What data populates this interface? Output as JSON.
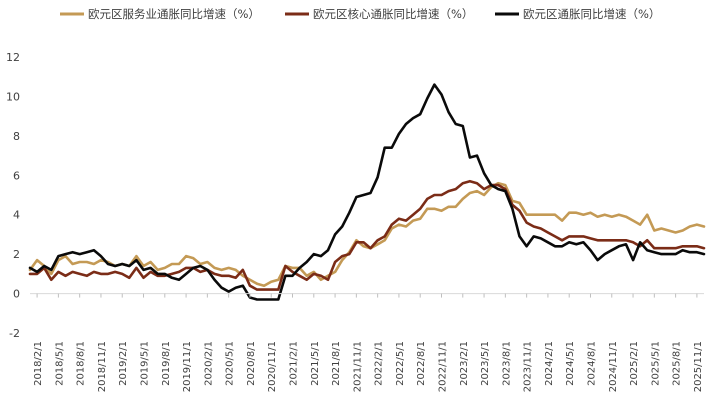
{
  "chart_data": {
    "type": "line",
    "title": "",
    "xlabel": "",
    "ylabel": "",
    "ylim": [
      -2,
      12
    ],
    "yticks": [
      -2,
      0,
      2,
      4,
      6,
      8,
      10,
      12
    ],
    "grid": false,
    "legend_position": "top",
    "x_start": "2018-01",
    "x_end": "2025-12",
    "x_ticks": [
      "2018/2/1",
      "2018/5/1",
      "2018/8/1",
      "2018/11/1",
      "2019/2/1",
      "2019/5/1",
      "2019/8/1",
      "2019/11/1",
      "2020/2/1",
      "2020/5/1",
      "2020/8/1",
      "2020/11/1",
      "2021/2/1",
      "2021/5/1",
      "2021/8/1",
      "2021/11/1",
      "2022/2/1",
      "2022/5/1",
      "2022/8/1",
      "2022/11/1",
      "2023/2/1",
      "2023/5/1",
      "2023/8/1",
      "2023/11/1",
      "2024/2/1",
      "2024/5/1",
      "2024/8/1",
      "2024/11/1",
      "2025/2/1",
      "2025/5/1",
      "2025/8/1",
      "2025/11/1"
    ],
    "series": [
      {
        "name": "欧元区服务业通胀同比增速（%）",
        "color": "#C49A55",
        "points": [
          [
            "2018-01",
            1.2
          ],
          [
            "2018-02",
            1.7
          ],
          [
            "2018-03",
            1.4
          ],
          [
            "2018-04",
            1.0
          ],
          [
            "2018-05",
            1.7
          ],
          [
            "2018-06",
            1.9
          ],
          [
            "2018-07",
            1.5
          ],
          [
            "2018-08",
            1.6
          ],
          [
            "2018-09",
            1.6
          ],
          [
            "2018-10",
            1.5
          ],
          [
            "2018-11",
            1.7
          ],
          [
            "2018-12",
            1.6
          ],
          [
            "2019-01",
            1.4
          ],
          [
            "2019-02",
            1.5
          ],
          [
            "2019-03",
            1.4
          ],
          [
            "2019-04",
            1.9
          ],
          [
            "2019-05",
            1.4
          ],
          [
            "2019-06",
            1.6
          ],
          [
            "2019-07",
            1.2
          ],
          [
            "2019-08",
            1.3
          ],
          [
            "2019-09",
            1.5
          ],
          [
            "2019-10",
            1.5
          ],
          [
            "2019-11",
            1.9
          ],
          [
            "2019-12",
            1.8
          ],
          [
            "2020-01",
            1.5
          ],
          [
            "2020-02",
            1.6
          ],
          [
            "2020-03",
            1.3
          ],
          [
            "2020-04",
            1.2
          ],
          [
            "2020-05",
            1.3
          ],
          [
            "2020-06",
            1.2
          ],
          [
            "2020-07",
            0.9
          ],
          [
            "2020-08",
            0.7
          ],
          [
            "2020-09",
            0.5
          ],
          [
            "2020-10",
            0.4
          ],
          [
            "2020-11",
            0.6
          ],
          [
            "2020-12",
            0.7
          ],
          [
            "2021-01",
            1.4
          ],
          [
            "2021-02",
            1.3
          ],
          [
            "2021-03",
            1.3
          ],
          [
            "2021-04",
            0.9
          ],
          [
            "2021-05",
            1.1
          ],
          [
            "2021-06",
            0.7
          ],
          [
            "2021-07",
            0.9
          ],
          [
            "2021-08",
            1.1
          ],
          [
            "2021-09",
            1.7
          ],
          [
            "2021-10",
            2.1
          ],
          [
            "2021-11",
            2.7
          ],
          [
            "2021-12",
            2.4
          ],
          [
            "2022-01",
            2.3
          ],
          [
            "2022-02",
            2.5
          ],
          [
            "2022-03",
            2.7
          ],
          [
            "2022-04",
            3.3
          ],
          [
            "2022-05",
            3.5
          ],
          [
            "2022-06",
            3.4
          ],
          [
            "2022-07",
            3.7
          ],
          [
            "2022-08",
            3.8
          ],
          [
            "2022-09",
            4.3
          ],
          [
            "2022-10",
            4.3
          ],
          [
            "2022-11",
            4.2
          ],
          [
            "2022-12",
            4.4
          ],
          [
            "2023-01",
            4.4
          ],
          [
            "2023-02",
            4.8
          ],
          [
            "2023-03",
            5.1
          ],
          [
            "2023-04",
            5.2
          ],
          [
            "2023-05",
            5.0
          ],
          [
            "2023-06",
            5.4
          ],
          [
            "2023-07",
            5.6
          ],
          [
            "2023-08",
            5.5
          ],
          [
            "2023-09",
            4.7
          ],
          [
            "2023-10",
            4.6
          ],
          [
            "2023-11",
            4.0
          ],
          [
            "2023-12",
            4.0
          ],
          [
            "2024-01",
            4.0
          ],
          [
            "2024-02",
            4.0
          ],
          [
            "2024-03",
            4.0
          ],
          [
            "2024-04",
            3.7
          ],
          [
            "2024-05",
            4.1
          ],
          [
            "2024-06",
            4.1
          ],
          [
            "2024-07",
            4.0
          ],
          [
            "2024-08",
            4.1
          ],
          [
            "2024-09",
            3.9
          ],
          [
            "2024-10",
            4.0
          ],
          [
            "2024-11",
            3.9
          ],
          [
            "2024-12",
            4.0
          ],
          [
            "2025-01",
            3.9
          ],
          [
            "2025-02",
            3.7
          ],
          [
            "2025-03",
            3.5
          ],
          [
            "2025-04",
            4.0
          ],
          [
            "2025-05",
            3.2
          ],
          [
            "2025-06",
            3.3
          ],
          [
            "2025-07",
            3.2
          ],
          [
            "2025-08",
            3.1
          ],
          [
            "2025-09",
            3.2
          ],
          [
            "2025-10",
            3.4
          ],
          [
            "2025-11",
            3.5
          ],
          [
            "2025-12",
            3.4
          ]
        ]
      },
      {
        "name": "欧元区核心通胀同比增速（%）",
        "color": "#7B2C17",
        "points": [
          [
            "2018-01",
            1.0
          ],
          [
            "2018-02",
            1.0
          ],
          [
            "2018-03",
            1.3
          ],
          [
            "2018-04",
            0.7
          ],
          [
            "2018-05",
            1.1
          ],
          [
            "2018-06",
            0.9
          ],
          [
            "2018-07",
            1.1
          ],
          [
            "2018-08",
            1.0
          ],
          [
            "2018-09",
            0.9
          ],
          [
            "2018-10",
            1.1
          ],
          [
            "2018-11",
            1.0
          ],
          [
            "2018-12",
            1.0
          ],
          [
            "2019-01",
            1.1
          ],
          [
            "2019-02",
            1.0
          ],
          [
            "2019-03",
            0.8
          ],
          [
            "2019-04",
            1.3
          ],
          [
            "2019-05",
            0.8
          ],
          [
            "2019-06",
            1.1
          ],
          [
            "2019-07",
            0.9
          ],
          [
            "2019-08",
            0.9
          ],
          [
            "2019-09",
            1.0
          ],
          [
            "2019-10",
            1.1
          ],
          [
            "2019-11",
            1.3
          ],
          [
            "2019-12",
            1.3
          ],
          [
            "2020-01",
            1.1
          ],
          [
            "2020-02",
            1.2
          ],
          [
            "2020-03",
            1.0
          ],
          [
            "2020-04",
            0.9
          ],
          [
            "2020-05",
            0.9
          ],
          [
            "2020-06",
            0.8
          ],
          [
            "2020-07",
            1.2
          ],
          [
            "2020-08",
            0.4
          ],
          [
            "2020-09",
            0.2
          ],
          [
            "2020-10",
            0.2
          ],
          [
            "2020-11",
            0.2
          ],
          [
            "2020-12",
            0.2
          ],
          [
            "2021-01",
            1.4
          ],
          [
            "2021-02",
            1.1
          ],
          [
            "2021-03",
            0.9
          ],
          [
            "2021-04",
            0.7
          ],
          [
            "2021-05",
            1.0
          ],
          [
            "2021-06",
            0.9
          ],
          [
            "2021-07",
            0.7
          ],
          [
            "2021-08",
            1.6
          ],
          [
            "2021-09",
            1.9
          ],
          [
            "2021-10",
            2.0
          ],
          [
            "2021-11",
            2.6
          ],
          [
            "2021-12",
            2.6
          ],
          [
            "2022-01",
            2.3
          ],
          [
            "2022-02",
            2.7
          ],
          [
            "2022-03",
            2.9
          ],
          [
            "2022-04",
            3.5
          ],
          [
            "2022-05",
            3.8
          ],
          [
            "2022-06",
            3.7
          ],
          [
            "2022-07",
            4.0
          ],
          [
            "2022-08",
            4.3
          ],
          [
            "2022-09",
            4.8
          ],
          [
            "2022-10",
            5.0
          ],
          [
            "2022-11",
            5.0
          ],
          [
            "2022-12",
            5.2
          ],
          [
            "2023-01",
            5.3
          ],
          [
            "2023-02",
            5.6
          ],
          [
            "2023-03",
            5.7
          ],
          [
            "2023-04",
            5.6
          ],
          [
            "2023-05",
            5.3
          ],
          [
            "2023-06",
            5.5
          ],
          [
            "2023-07",
            5.5
          ],
          [
            "2023-08",
            5.3
          ],
          [
            "2023-09",
            4.5
          ],
          [
            "2023-10",
            4.2
          ],
          [
            "2023-11",
            3.6
          ],
          [
            "2023-12",
            3.4
          ],
          [
            "2024-01",
            3.3
          ],
          [
            "2024-02",
            3.1
          ],
          [
            "2024-03",
            2.9
          ],
          [
            "2024-04",
            2.7
          ],
          [
            "2024-05",
            2.9
          ],
          [
            "2024-06",
            2.9
          ],
          [
            "2024-07",
            2.9
          ],
          [
            "2024-08",
            2.8
          ],
          [
            "2024-09",
            2.7
          ],
          [
            "2024-10",
            2.7
          ],
          [
            "2024-11",
            2.7
          ],
          [
            "2024-12",
            2.7
          ],
          [
            "2025-01",
            2.7
          ],
          [
            "2025-02",
            2.6
          ],
          [
            "2025-03",
            2.4
          ],
          [
            "2025-04",
            2.7
          ],
          [
            "2025-05",
            2.3
          ],
          [
            "2025-06",
            2.3
          ],
          [
            "2025-07",
            2.3
          ],
          [
            "2025-08",
            2.3
          ],
          [
            "2025-09",
            2.4
          ],
          [
            "2025-10",
            2.4
          ],
          [
            "2025-11",
            2.4
          ],
          [
            "2025-12",
            2.3
          ]
        ]
      },
      {
        "name": "欧元区通胀同比增速（%）",
        "color": "#0a0a0a",
        "points": [
          [
            "2018-01",
            1.3
          ],
          [
            "2018-02",
            1.1
          ],
          [
            "2018-03",
            1.4
          ],
          [
            "2018-04",
            1.2
          ],
          [
            "2018-05",
            1.9
          ],
          [
            "2018-06",
            2.0
          ],
          [
            "2018-07",
            2.1
          ],
          [
            "2018-08",
            2.0
          ],
          [
            "2018-09",
            2.1
          ],
          [
            "2018-10",
            2.2
          ],
          [
            "2018-11",
            1.9
          ],
          [
            "2018-12",
            1.5
          ],
          [
            "2019-01",
            1.4
          ],
          [
            "2019-02",
            1.5
          ],
          [
            "2019-03",
            1.4
          ],
          [
            "2019-04",
            1.7
          ],
          [
            "2019-05",
            1.2
          ],
          [
            "2019-06",
            1.3
          ],
          [
            "2019-07",
            1.0
          ],
          [
            "2019-08",
            1.0
          ],
          [
            "2019-09",
            0.8
          ],
          [
            "2019-10",
            0.7
          ],
          [
            "2019-11",
            1.0
          ],
          [
            "2019-12",
            1.3
          ],
          [
            "2020-01",
            1.4
          ],
          [
            "2020-02",
            1.2
          ],
          [
            "2020-03",
            0.7
          ],
          [
            "2020-04",
            0.3
          ],
          [
            "2020-05",
            0.1
          ],
          [
            "2020-06",
            0.3
          ],
          [
            "2020-07",
            0.4
          ],
          [
            "2020-08",
            -0.2
          ],
          [
            "2020-09",
            -0.3
          ],
          [
            "2020-10",
            -0.3
          ],
          [
            "2020-11",
            -0.3
          ],
          [
            "2020-12",
            -0.3
          ],
          [
            "2021-01",
            0.9
          ],
          [
            "2021-02",
            0.9
          ],
          [
            "2021-03",
            1.3
          ],
          [
            "2021-04",
            1.6
          ],
          [
            "2021-05",
            2.0
          ],
          [
            "2021-06",
            1.9
          ],
          [
            "2021-07",
            2.2
          ],
          [
            "2021-08",
            3.0
          ],
          [
            "2021-09",
            3.4
          ],
          [
            "2021-10",
            4.1
          ],
          [
            "2021-11",
            4.9
          ],
          [
            "2021-12",
            5.0
          ],
          [
            "2022-01",
            5.1
          ],
          [
            "2022-02",
            5.9
          ],
          [
            "2022-03",
            7.4
          ],
          [
            "2022-04",
            7.4
          ],
          [
            "2022-05",
            8.1
          ],
          [
            "2022-06",
            8.6
          ],
          [
            "2022-07",
            8.9
          ],
          [
            "2022-08",
            9.1
          ],
          [
            "2022-09",
            9.9
          ],
          [
            "2022-10",
            10.6
          ],
          [
            "2022-11",
            10.1
          ],
          [
            "2022-12",
            9.2
          ],
          [
            "2023-01",
            8.6
          ],
          [
            "2023-02",
            8.5
          ],
          [
            "2023-03",
            6.9
          ],
          [
            "2023-04",
            7.0
          ],
          [
            "2023-05",
            6.1
          ],
          [
            "2023-06",
            5.5
          ],
          [
            "2023-07",
            5.3
          ],
          [
            "2023-08",
            5.2
          ],
          [
            "2023-09",
            4.3
          ],
          [
            "2023-10",
            2.9
          ],
          [
            "2023-11",
            2.4
          ],
          [
            "2023-12",
            2.9
          ],
          [
            "2024-01",
            2.8
          ],
          [
            "2024-02",
            2.6
          ],
          [
            "2024-03",
            2.4
          ],
          [
            "2024-04",
            2.4
          ],
          [
            "2024-05",
            2.6
          ],
          [
            "2024-06",
            2.5
          ],
          [
            "2024-07",
            2.6
          ],
          [
            "2024-08",
            2.2
          ],
          [
            "2024-09",
            1.7
          ],
          [
            "2024-10",
            2.0
          ],
          [
            "2024-11",
            2.2
          ],
          [
            "2024-12",
            2.4
          ],
          [
            "2025-01",
            2.5
          ],
          [
            "2025-02",
            1.7
          ],
          [
            "2025-03",
            2.6
          ],
          [
            "2025-04",
            2.2
          ],
          [
            "2025-05",
            2.1
          ],
          [
            "2025-06",
            2.0
          ],
          [
            "2025-07",
            2.0
          ],
          [
            "2025-08",
            2.0
          ],
          [
            "2025-09",
            2.2
          ],
          [
            "2025-10",
            2.1
          ],
          [
            "2025-11",
            2.1
          ],
          [
            "2025-12",
            2.0
          ]
        ]
      }
    ]
  }
}
